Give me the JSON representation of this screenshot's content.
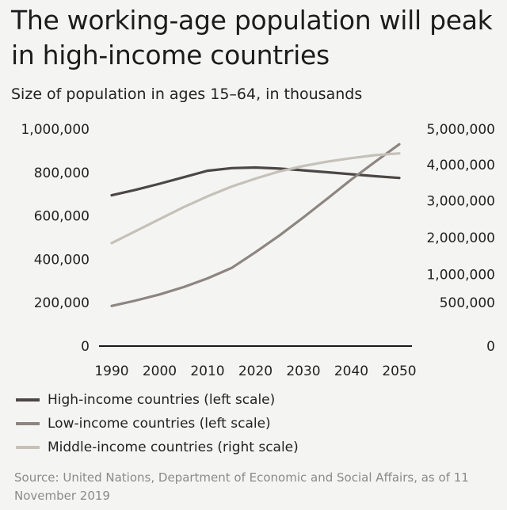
{
  "header": {
    "title": "The working-age population will peak in high-income countries",
    "subtitle": "Size of population in ages 15–64, in thousands"
  },
  "source": "Source: United Nations, Department of Economic and Social Affairs, as of 11 November 2019",
  "colors": {
    "high": "#4a4744",
    "low": "#8d8580",
    "middle": "#c6c1b8",
    "axis": "#1a1a1a",
    "background": "#f4f4f3"
  },
  "chart_data": {
    "type": "line",
    "title": "The working-age population will peak in high-income countries",
    "subtitle": "Size of population in ages 15–64, in thousands",
    "xlabel": "",
    "ylabel_left": "",
    "ylabel_right": "",
    "x": [
      1990,
      1995,
      2000,
      2005,
      2010,
      2015,
      2020,
      2025,
      2030,
      2035,
      2040,
      2045,
      2050
    ],
    "x_ticks": [
      "1990",
      "2000",
      "2010",
      "2020",
      "2030",
      "2040",
      "2050"
    ],
    "x_tick_values": [
      1990,
      2000,
      2010,
      2020,
      2030,
      2040,
      2050
    ],
    "xlim": [
      1990,
      2050
    ],
    "left_axis": {
      "ylim": [
        0,
        1000000
      ],
      "ticks": [
        {
          "value": 0,
          "label": "0"
        },
        {
          "value": 200000,
          "label": "200,000"
        },
        {
          "value": 400000,
          "label": "400,000"
        },
        {
          "value": 600000,
          "label": "600,000"
        },
        {
          "value": 800000,
          "label": "800,000"
        },
        {
          "value": 1000000,
          "label": "1,000,000"
        }
      ]
    },
    "right_axis": {
      "ylim": [
        0,
        5000000
      ],
      "ticks": [
        {
          "label": "0",
          "left_equiv": 0
        },
        {
          "label": "500,000",
          "left_equiv": 200000
        },
        {
          "label": "1,000,000",
          "left_equiv": 330000
        },
        {
          "label": "2,000,000",
          "left_equiv": 500000
        },
        {
          "label": "3,000,000",
          "left_equiv": 670000
        },
        {
          "label": "4,000,000",
          "left_equiv": 835000
        },
        {
          "label": "5,000,000",
          "left_equiv": 1000000
        }
      ]
    },
    "series": [
      {
        "name": "High-income countries (left scale)",
        "key": "high",
        "axis": "left",
        "values": [
          695000,
          720000,
          748000,
          778000,
          808000,
          820000,
          823000,
          818000,
          810000,
          801000,
          792000,
          783000,
          775000
        ]
      },
      {
        "name": "Low-income countries (left scale)",
        "key": "low",
        "axis": "left",
        "values": [
          185000,
          210000,
          238000,
          272000,
          312000,
          360000,
          433000,
          510000,
          593000,
          680000,
          768000,
          850000,
          930000
        ]
      },
      {
        "name": "Middle-income countries (right scale)",
        "key": "middle",
        "axis": "right",
        "left_equiv_values": [
          475000,
          530000,
          585000,
          640000,
          690000,
          735000,
          772000,
          805000,
          830000,
          850000,
          866000,
          880000,
          888000
        ]
      }
    ],
    "legend_position": "bottom-left"
  }
}
